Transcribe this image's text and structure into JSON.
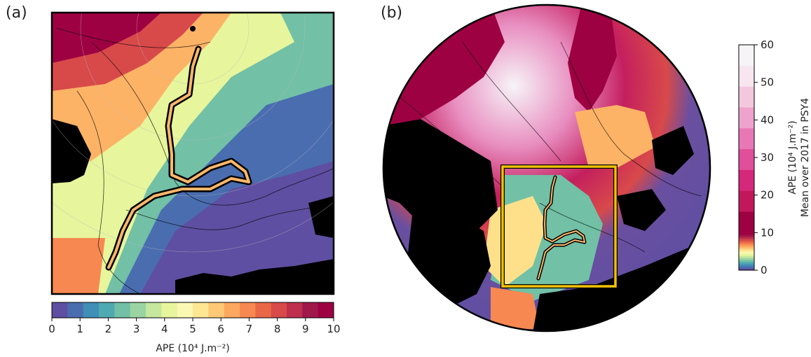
{
  "panels": {
    "a": {
      "label": "(a)"
    },
    "b": {
      "label": "(b)"
    }
  },
  "colorbar_a": {
    "min": 0,
    "max": 10,
    "ticks": [
      "0",
      "1",
      "2",
      "3",
      "4",
      "5",
      "6",
      "7",
      "8",
      "9",
      "10"
    ],
    "label": "APE (10⁴ J.m⁻²)"
  },
  "colorbar_b": {
    "min": 0,
    "max": 60,
    "ticks": [
      "0",
      "10",
      "20",
      "30",
      "40",
      "50",
      "60"
    ],
    "label_line1": "APE (10⁴ J.m⁻²)",
    "label_line2": "Mean over 2017 in PSY4"
  },
  "colors": {
    "scale_0_10": [
      "#5e4fa2",
      "#4a6db0",
      "#3f8fb6",
      "#4fa9b0",
      "#72c0a6",
      "#9ad4a2",
      "#c5e79e",
      "#e7f59c",
      "#fbf8b4",
      "#fee693",
      "#fec877",
      "#fda85f",
      "#f78851",
      "#ea6746",
      "#d8494a",
      "#bd2f4d",
      "#a0184a",
      "#9e0142"
    ],
    "scale_10_60": [
      "#9e0142",
      "#c2185b",
      "#d6287a",
      "#e04f9a",
      "#e878b5",
      "#eea3cc",
      "#f3c8df",
      "#f7e6f0",
      "#f7f4f8"
    ],
    "track": "#000000",
    "box": "#f2c200"
  }
}
